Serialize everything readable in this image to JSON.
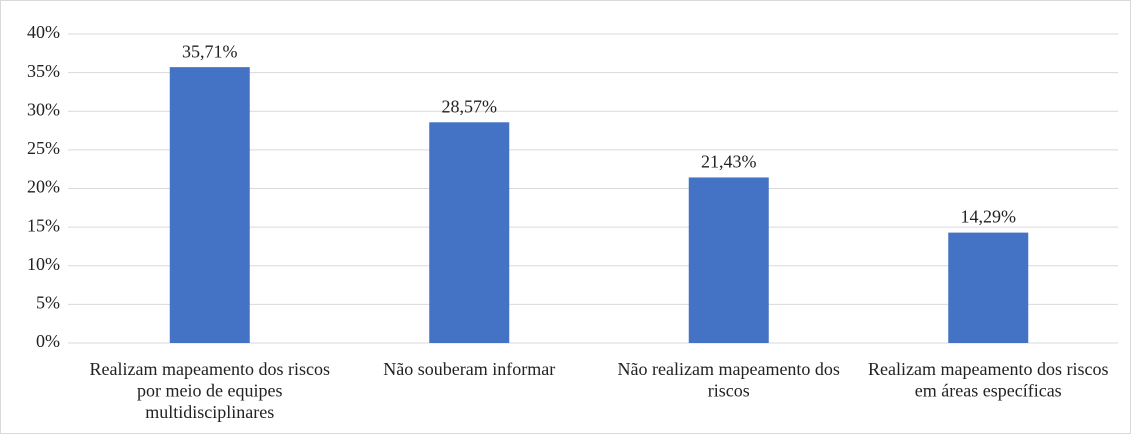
{
  "chart_data": {
    "type": "bar",
    "categories": [
      "Realizam mapeamento dos riscos por meio de equipes multidisciplinares",
      "Não souberam informar",
      "Não realizam mapeamento dos riscos",
      "Realizam mapeamento dos riscos em áreas específicas"
    ],
    "values": [
      35.71,
      28.57,
      21.43,
      14.29
    ],
    "value_labels": [
      "35,71%",
      "28,57%",
      "21,43%",
      "14,29%"
    ],
    "color": "#4472c4",
    "ylim": [
      0,
      40
    ],
    "yticks": [
      {
        "value": 0,
        "label": "0%"
      },
      {
        "value": 5,
        "label": "5%"
      },
      {
        "value": 10,
        "label": "10%"
      },
      {
        "value": 15,
        "label": "15%"
      },
      {
        "value": 20,
        "label": "20%"
      },
      {
        "value": 25,
        "label": "25%"
      },
      {
        "value": 30,
        "label": "30%"
      },
      {
        "value": 35,
        "label": "35%"
      },
      {
        "value": 40,
        "label": "40%"
      }
    ],
    "grid": true
  }
}
